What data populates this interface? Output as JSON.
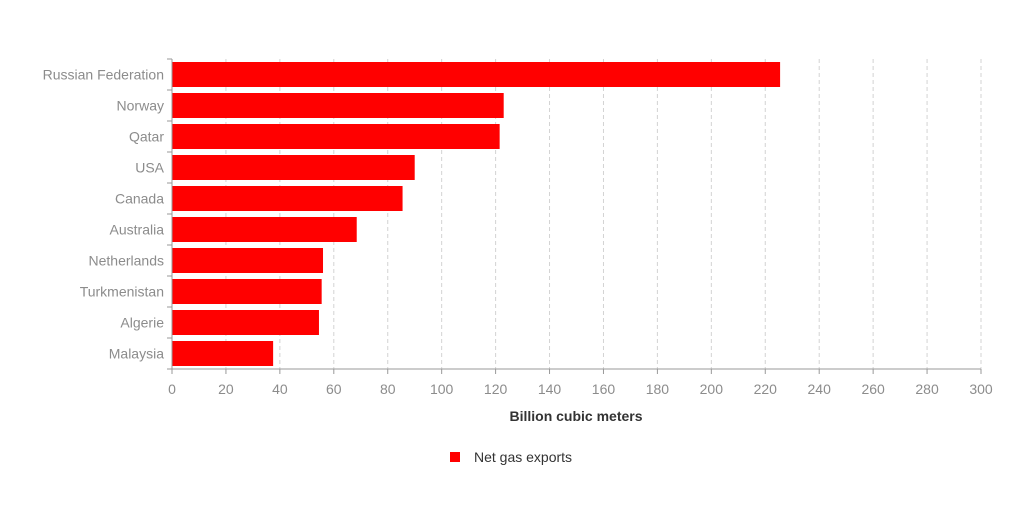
{
  "chart_data": {
    "type": "bar",
    "orientation": "horizontal",
    "categories": [
      "Russian Federation",
      "Norway",
      "Qatar",
      "USA",
      "Canada",
      "Australia",
      "Netherlands",
      "Turkmenistan",
      "Algerie",
      "Malaysia"
    ],
    "series": [
      {
        "name": "Net gas exports",
        "values": [
          225.5,
          123,
          121.5,
          90,
          85.5,
          68.5,
          56,
          55.5,
          54.5,
          37.5
        ],
        "color": "#ff0000"
      }
    ],
    "xlabel": "Billion cubic meters",
    "ylabel": "",
    "xlim": [
      0,
      300
    ],
    "xticks": [
      0,
      20,
      40,
      60,
      80,
      100,
      120,
      140,
      160,
      180,
      200,
      220,
      240,
      260,
      280,
      300
    ],
    "grid": "vertical-dashed",
    "legend": "bottom-center"
  }
}
